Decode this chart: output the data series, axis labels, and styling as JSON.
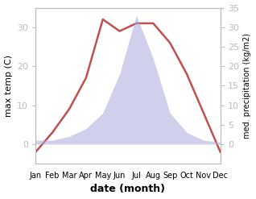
{
  "months": [
    "Jan",
    "Feb",
    "Mar",
    "Apr",
    "May",
    "Jun",
    "Jul",
    "Aug",
    "Sep",
    "Oct",
    "Nov",
    "Dec"
  ],
  "month_positions": [
    1,
    2,
    3,
    4,
    5,
    6,
    7,
    8,
    9,
    10,
    11,
    12
  ],
  "temperature": [
    -2,
    3,
    9,
    17,
    32,
    29,
    31,
    31,
    26,
    18,
    8,
    -2
  ],
  "precipitation": [
    1,
    1,
    2,
    4,
    8,
    18,
    33,
    22,
    8,
    3,
    1,
    0.5
  ],
  "temp_color": "#c0504d",
  "precip_fill_color": "#aaaadd",
  "precip_fill_alpha": 0.55,
  "temp_ylim": [
    -5,
    35
  ],
  "precip_ylim": [
    -5,
    35
  ],
  "temp_yticks": [
    0,
    10,
    20,
    30
  ],
  "precip_yticks": [
    0,
    5,
    10,
    15,
    20,
    25,
    30,
    35
  ],
  "xlabel": "date (month)",
  "ylabel_left": "max temp (C)",
  "ylabel_right": "med. precipitation (kg/m2)",
  "background_color": "#ffffff",
  "line_width": 1.8,
  "spine_color": "#bbbbbb",
  "tick_label_fontsize": 7,
  "ylabel_fontsize": 8,
  "xlabel_fontsize": 9
}
